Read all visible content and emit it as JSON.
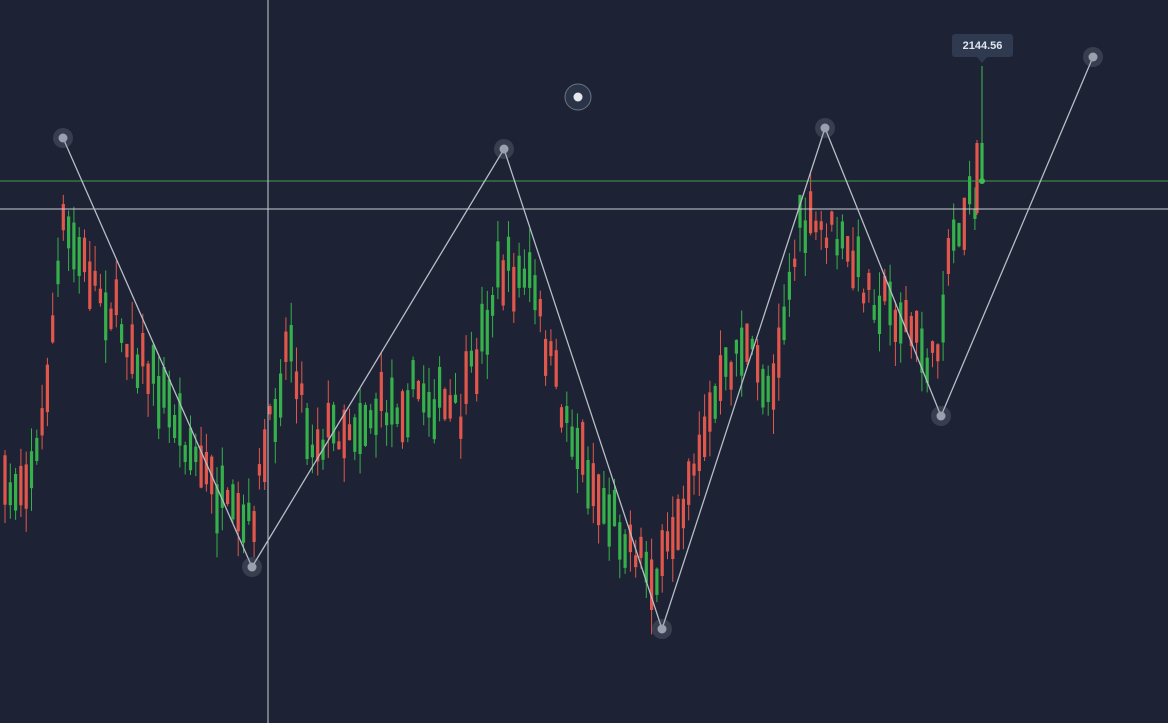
{
  "price_label": "2144.56"
}
